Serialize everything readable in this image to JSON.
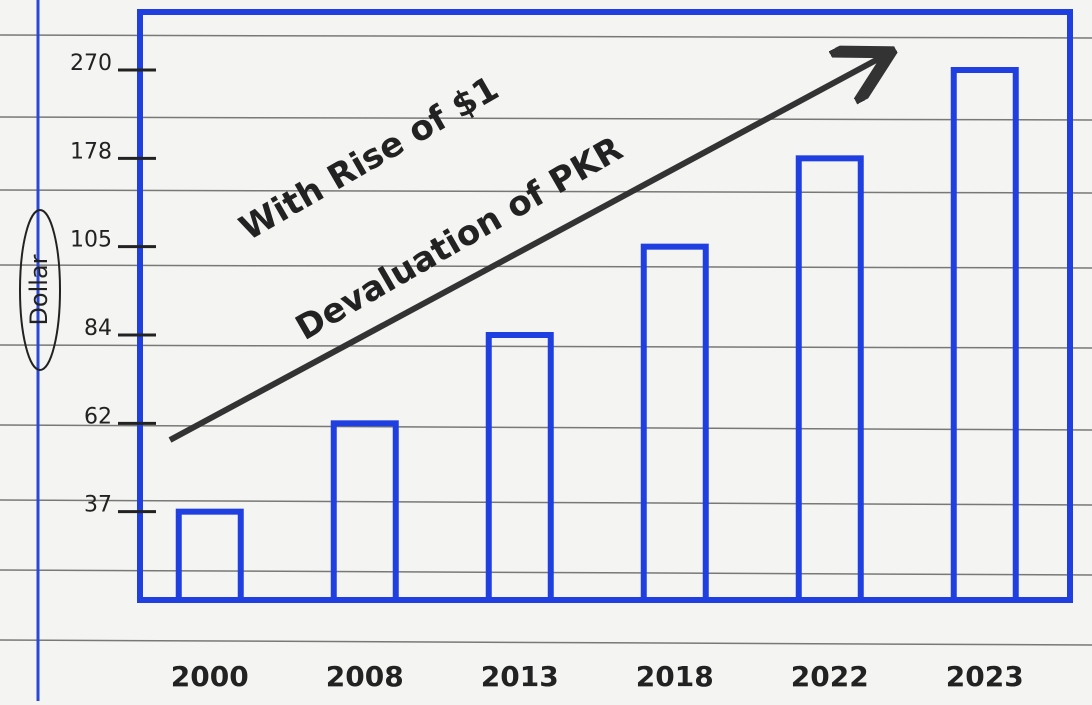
{
  "chart_data": {
    "type": "bar",
    "annotations": [
      "With Rise of $1",
      "Devaluation of PKR"
    ],
    "y_label": "Dollar",
    "categories": [
      "2000",
      "2008",
      "2013",
      "2018",
      "2022",
      "2023"
    ],
    "values": [
      37,
      62,
      84,
      105,
      178,
      270
    ],
    "color": "#1f3fe0",
    "ylim": [
      0,
      270
    ],
    "yticks": [
      37,
      62,
      84,
      105,
      178,
      270
    ]
  }
}
